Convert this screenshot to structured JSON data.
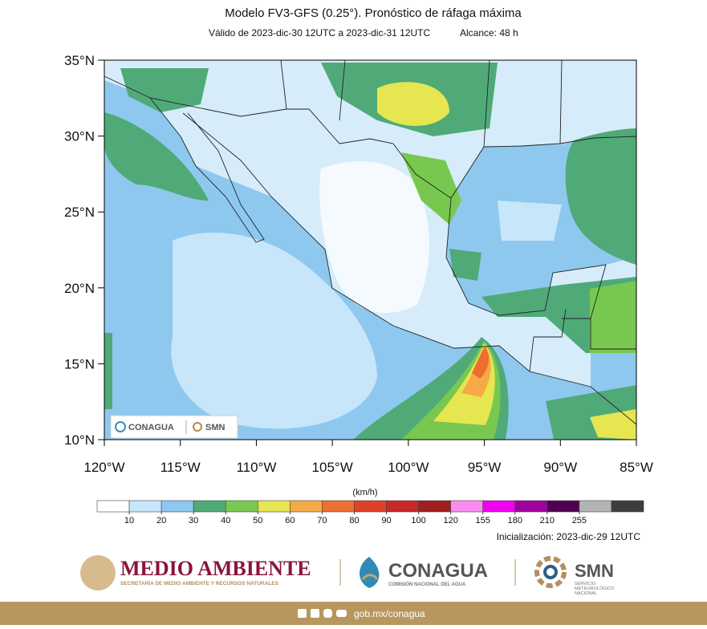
{
  "header": {
    "title": "Modelo FV3-GFS (0.25°). Pronóstico de ráfaga máxima",
    "valid": "Válido de 2023-dic-30 12UTC a 2023-dic-31 12UTC",
    "range": "Alcance: 48 h"
  },
  "map": {
    "lat_labels": [
      "35°N",
      "30°N",
      "25°N",
      "20°N",
      "15°N",
      "10°N"
    ],
    "lon_labels": [
      "120°W",
      "115°W",
      "110°W",
      "105°W",
      "100°W",
      "95°W",
      "90°W",
      "85°W"
    ],
    "inset_logos": {
      "conagua": "CONAGUA",
      "smn": "SMN"
    }
  },
  "colorbar": {
    "unit": "(km/h)",
    "levels": [
      10,
      20,
      30,
      40,
      50,
      60,
      70,
      80,
      90,
      100,
      120,
      155,
      180,
      210,
      255
    ],
    "colors": [
      "#ffffff",
      "#c8e6fa",
      "#8cc8f0",
      "#50aa78",
      "#78c850",
      "#e6e650",
      "#f5aa46",
      "#ee6e32",
      "#e04028",
      "#c82828",
      "#a01e1e",
      "#fa8cf0",
      "#f000f0",
      "#a000a0",
      "#500050",
      "#b4b4b4",
      "#3c3c3c"
    ]
  },
  "initialization": "Inicialización: 2023-dic-29 12UTC",
  "logos": {
    "semarnat": "MEDIO AMBIENTE",
    "semarnat_sub": "SECRETARÍA DE MEDIO AMBIENTE Y RECURSOS NATURALES",
    "conagua": "CONAGUA",
    "conagua_sub": "COMISIÓN NACIONAL DEL AGUA",
    "smn": "SMN",
    "smn_sub": [
      "SERVICIO",
      "METEOROLÓGICO",
      "NACIONAL"
    ]
  },
  "footer": {
    "url": "gob.mx/conagua"
  }
}
